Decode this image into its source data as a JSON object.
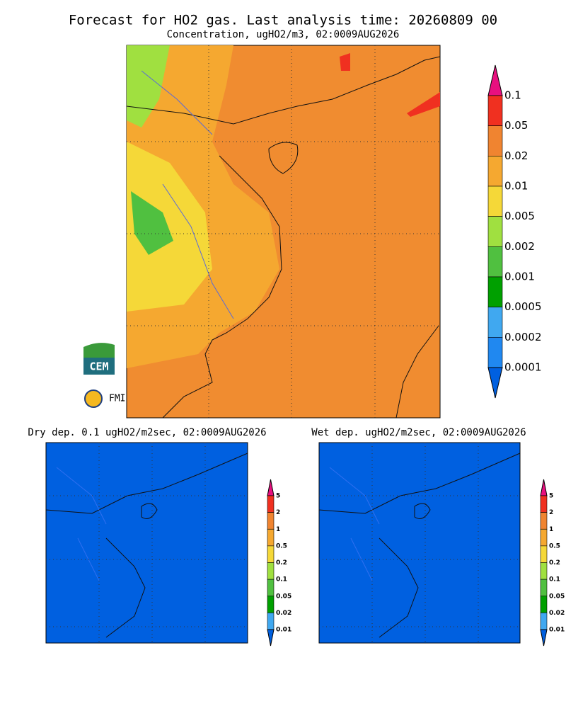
{
  "header": {
    "title": "Forecast for HO2 gas. Last analysis time: 20260809 00",
    "subtitle": "Concentration, ugHO2/m3, 02:0009AUG2026"
  },
  "main_colorbar": {
    "levels": [
      "0.1",
      "0.05",
      "0.02",
      "0.01",
      "0.005",
      "0.002",
      "0.001",
      "0.0005",
      "0.0002",
      "0.0001"
    ]
  },
  "small_colorbar": {
    "levels": [
      "5",
      "2",
      "1",
      "0.5",
      "0.2",
      "0.1",
      "0.05",
      "0.02",
      "0.01"
    ]
  },
  "colors": [
    "#e8107f",
    "#f03020",
    "#f08430",
    "#f5a830",
    "#f5d838",
    "#a0e040",
    "#50c040",
    "#00a000",
    "#40a8f0",
    "#2088f0",
    "#0060e0"
  ],
  "panels": [
    {
      "title": "Dry dep. 0.1 ugHO2/m2sec, 02:0009AUG2026"
    },
    {
      "title": "Wet dep. ugHO2/m2sec, 02:0009AUG2026"
    }
  ],
  "logos": {
    "cem": "CEM",
    "fmi": "FMI"
  }
}
